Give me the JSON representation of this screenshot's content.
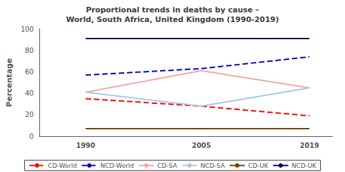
{
  "chart_data": {
    "type": "line",
    "title": "Proportional trends in deaths by cause –\nWorld, South Africa, United Kingdom (1990-2019)",
    "ylabel": "Percentage",
    "x": [
      1990,
      2005,
      2019
    ],
    "xlim": [
      1984,
      2022
    ],
    "xticks": [
      1990,
      2005,
      2019
    ],
    "ylim": [
      0,
      100
    ],
    "yticks": [
      0,
      20,
      40,
      60,
      80,
      100
    ],
    "grid": false,
    "legend": "bottom",
    "series": [
      {
        "name": "CD-World",
        "values": [
          35,
          28,
          19
        ],
        "color": "#FF0000",
        "line_style": "dashed"
      },
      {
        "name": "NCD-World",
        "values": [
          57,
          63,
          74
        ],
        "color": "#0000CD",
        "line_style": "dashed"
      },
      {
        "name": "CD-SA",
        "values": [
          41,
          61,
          45
        ],
        "color": "#F4A7A7",
        "line_style": "solid"
      },
      {
        "name": "NCD-SA",
        "values": [
          41,
          28,
          45
        ],
        "color": "#A8C8E8",
        "line_style": "solid"
      },
      {
        "name": "CD-UK",
        "values": [
          7,
          7,
          7
        ],
        "color": "#7B3F00",
        "line_style": "solid"
      },
      {
        "name": "NCD-UK",
        "values": [
          91,
          91,
          91
        ],
        "color": "#000060",
        "line_style": "solid"
      }
    ]
  }
}
